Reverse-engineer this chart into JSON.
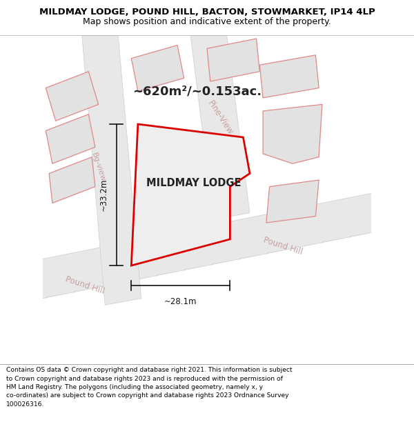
{
  "title": "MILDMAY LODGE, POUND HILL, BACTON, STOWMARKET, IP14 4LP",
  "subtitle": "Map shows position and indicative extent of the property.",
  "footer": "Contains OS data © Crown copyright and database right 2021. This information is subject\nto Crown copyright and database rights 2023 and is reproduced with the permission of\nHM Land Registry. The polygons (including the associated geometry, namely x, y\nco-ordinates) are subject to Crown copyright and database rights 2023 Ordnance Survey\n100026316.",
  "area_label": "~620m²/~0.153ac.",
  "property_label": "MILDMAY LODGE",
  "dim1_label": "~33.2m",
  "dim2_label": "~28.1m",
  "bg_color": "#ffffff",
  "map_bg": "#f5f5f5",
  "building_fill": "#e2e2e2",
  "building_edge": "#e08888",
  "property_edge": "#dd0000",
  "property_fill": "#eeeeee",
  "road_fill": "#e8e8e8",
  "road_edge": "#cccccc",
  "street_color": "#c8a0a0",
  "label_color": "#222222",
  "dim_color": "#111111",
  "pine_view_label": "Pine-View",
  "pound_hill_label": "Pound Hill",
  "bg_view_label": "Bg-view"
}
